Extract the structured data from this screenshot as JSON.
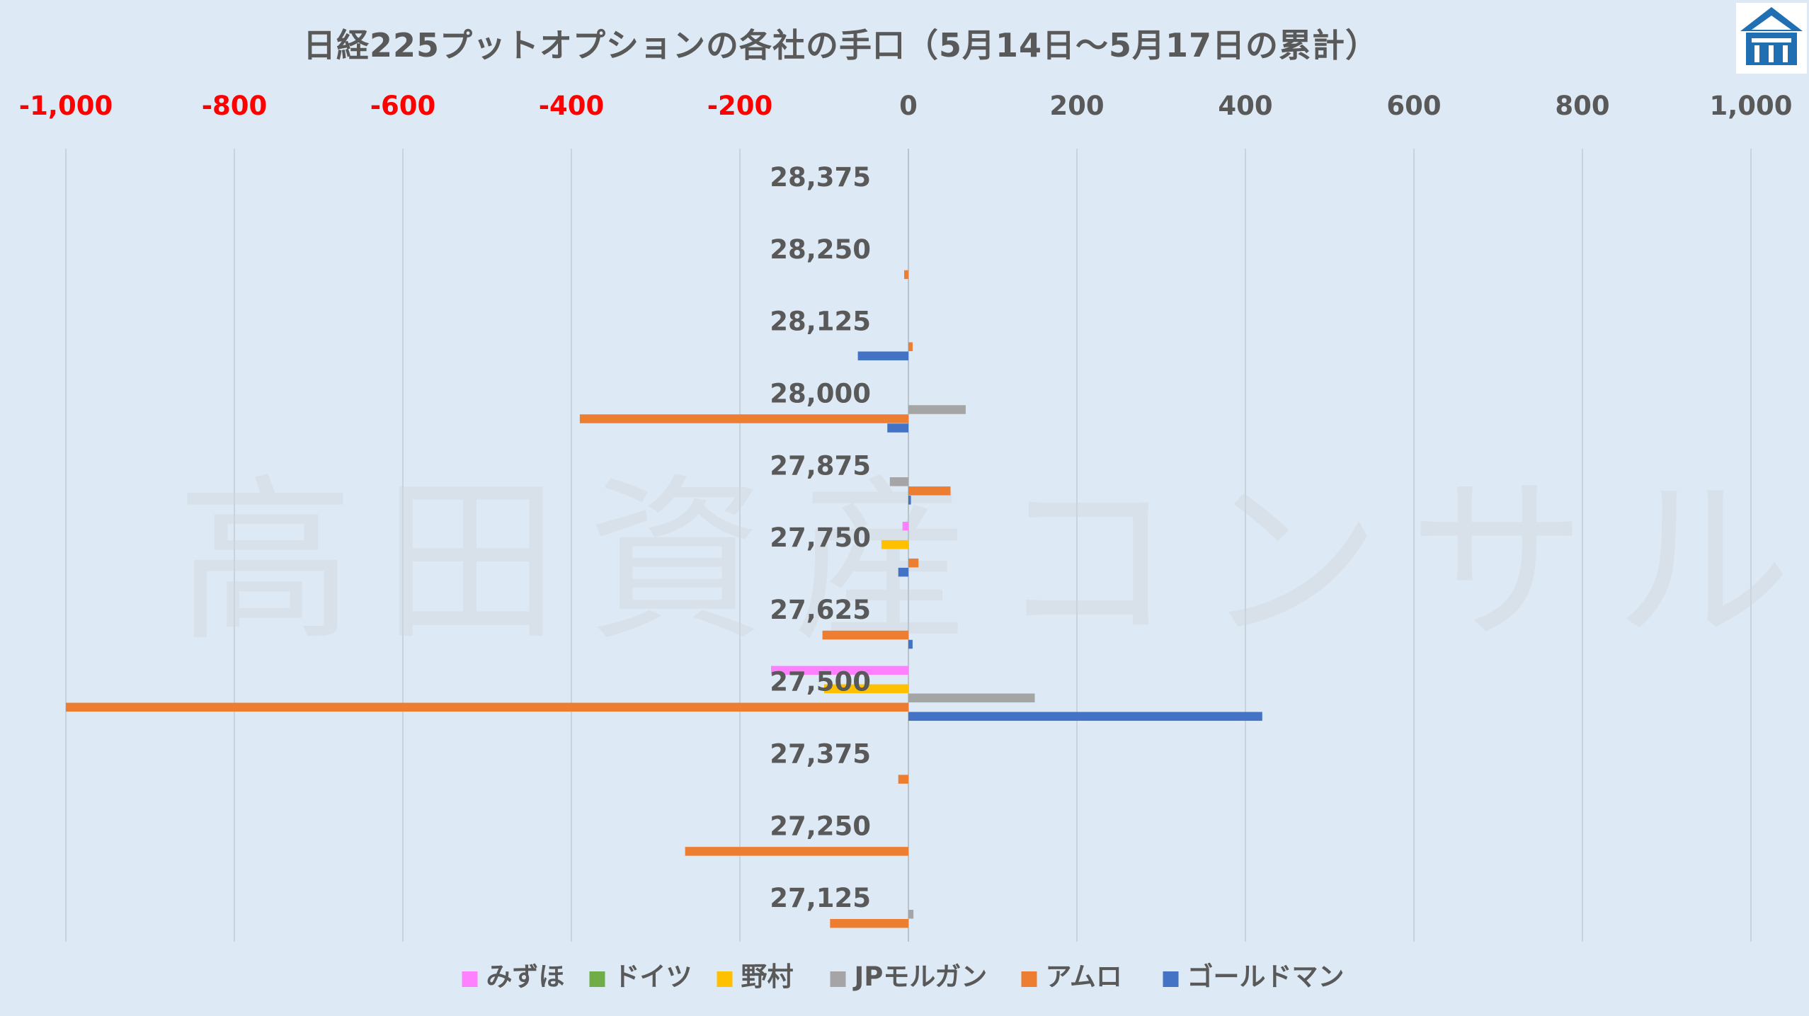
{
  "title": "日経225プットオプションの各社の手口（5月14日～5月17日の累計）",
  "watermark": "高田資産コンサル",
  "colors": {
    "negative_tick": "#ff0000",
    "positive_tick": "#595959",
    "background": "#dde9f4"
  },
  "logo": {
    "icon": "house-logo-icon"
  },
  "chart_data": {
    "type": "bar",
    "orientation": "horizontal",
    "title": "日経225プットオプションの各社の手口（5月14日～5月17日の累計）",
    "xlim": [
      -1000,
      1000
    ],
    "x_ticks": [
      "-1,000",
      "-800",
      "-600",
      "-400",
      "-200",
      "0",
      "200",
      "400",
      "600",
      "800",
      "1,000"
    ],
    "x_tick_values": [
      -1000,
      -800,
      -600,
      -400,
      -200,
      0,
      200,
      400,
      600,
      800,
      1000
    ],
    "x_axis_position": "top",
    "grid": true,
    "legend_position": "bottom",
    "categories": [
      "28,375",
      "28,250",
      "28,125",
      "28,000",
      "27,875",
      "27,750",
      "27,625",
      "27,500",
      "27,375",
      "27,250",
      "27,125"
    ],
    "series": [
      {
        "name": "みずほ",
        "color": "#ff80ff",
        "values": [
          0,
          0,
          0,
          0,
          0,
          -7,
          0,
          -163,
          0,
          0,
          0
        ]
      },
      {
        "name": "ドイツ",
        "color": "#70ad47",
        "values": [
          0,
          0,
          0,
          0,
          0,
          0,
          0,
          0,
          0,
          0,
          0
        ]
      },
      {
        "name": "野村",
        "color": "#ffc000",
        "values": [
          0,
          0,
          0,
          0,
          0,
          -32,
          0,
          -100,
          0,
          0,
          0
        ]
      },
      {
        "name": "JPモルガン",
        "color": "#a5a5a5",
        "values": [
          0,
          0,
          0,
          68,
          -22,
          0,
          0,
          150,
          0,
          0,
          6
        ]
      },
      {
        "name": "アムロ",
        "color": "#ed7d31",
        "values": [
          0,
          -5,
          5,
          -390,
          50,
          12,
          -102,
          -1000,
          -12,
          -265,
          -93
        ]
      },
      {
        "name": "ゴールドマン",
        "color": "#4472c4",
        "values": [
          0,
          0,
          -60,
          -25,
          3,
          -12,
          5,
          420,
          0,
          0,
          0
        ]
      }
    ]
  }
}
